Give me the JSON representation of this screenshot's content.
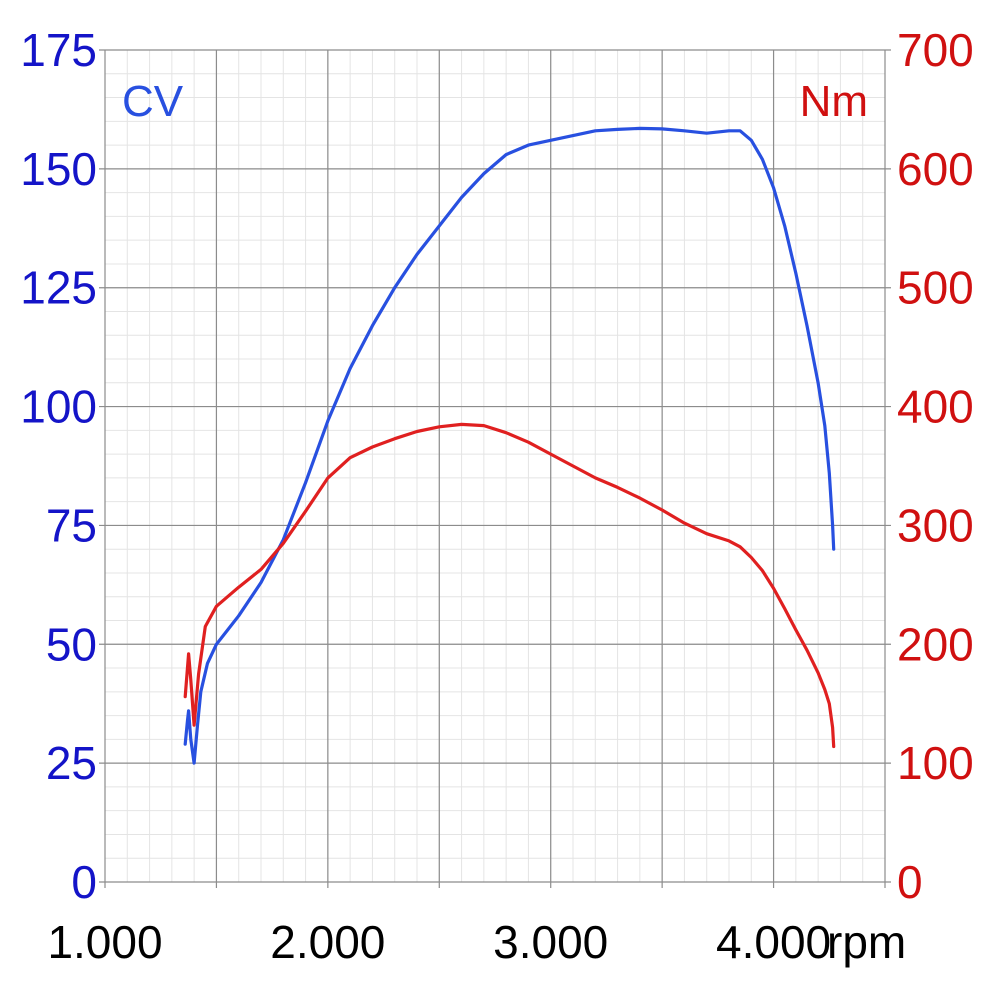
{
  "chart_data": {
    "type": "line",
    "x_unit": "rpm",
    "x_ticks": [
      1000,
      2000,
      3000,
      4000
    ],
    "x_tick_labels": [
      "1.000",
      "2.000",
      "3.000",
      "4.000"
    ],
    "xlim": [
      1000,
      4500
    ],
    "grid": true,
    "axes": {
      "left": {
        "label": "CV",
        "ticks": [
          0,
          25,
          50,
          75,
          100,
          125,
          150,
          175
        ],
        "tick_labels": [
          "0",
          "25",
          "50",
          "75",
          "100",
          "125",
          "150",
          "175"
        ],
        "ylim": [
          0,
          175
        ],
        "color": "#1414c8"
      },
      "right": {
        "label": "Nm",
        "ticks": [
          0,
          100,
          200,
          300,
          400,
          500,
          600,
          700
        ],
        "tick_labels": [
          "0",
          "100",
          "200",
          "300",
          "400",
          "500",
          "600",
          "700"
        ],
        "ylim": [
          0,
          700
        ],
        "color": "#d01010"
      }
    },
    "series": [
      {
        "axis": "left",
        "color": "#2850e0",
        "points": [
          [
            1360,
            29
          ],
          [
            1370,
            34
          ],
          [
            1375,
            36
          ],
          [
            1385,
            30
          ],
          [
            1400,
            25
          ],
          [
            1415,
            33
          ],
          [
            1430,
            40
          ],
          [
            1460,
            46
          ],
          [
            1500,
            50
          ],
          [
            1550,
            53
          ],
          [
            1600,
            56
          ],
          [
            1700,
            63
          ],
          [
            1800,
            72
          ],
          [
            1900,
            84
          ],
          [
            2000,
            97
          ],
          [
            2100,
            108
          ],
          [
            2200,
            117
          ],
          [
            2300,
            125
          ],
          [
            2400,
            132
          ],
          [
            2500,
            138
          ],
          [
            2600,
            144
          ],
          [
            2700,
            149
          ],
          [
            2800,
            153
          ],
          [
            2900,
            155
          ],
          [
            3000,
            156
          ],
          [
            3100,
            157
          ],
          [
            3200,
            158
          ],
          [
            3300,
            158.3
          ],
          [
            3400,
            158.5
          ],
          [
            3500,
            158.4
          ],
          [
            3600,
            158
          ],
          [
            3700,
            157.5
          ],
          [
            3800,
            158
          ],
          [
            3850,
            158
          ],
          [
            3900,
            156
          ],
          [
            3950,
            152
          ],
          [
            4000,
            146
          ],
          [
            4050,
            138
          ],
          [
            4100,
            128
          ],
          [
            4150,
            117
          ],
          [
            4200,
            105
          ],
          [
            4230,
            96
          ],
          [
            4250,
            86
          ],
          [
            4265,
            75
          ],
          [
            4270,
            70
          ]
        ]
      },
      {
        "axis": "right",
        "color": "#e02020",
        "points": [
          [
            1360,
            156
          ],
          [
            1375,
            192
          ],
          [
            1385,
            170
          ],
          [
            1400,
            132
          ],
          [
            1420,
            175
          ],
          [
            1450,
            215
          ],
          [
            1500,
            232
          ],
          [
            1550,
            240
          ],
          [
            1600,
            248
          ],
          [
            1700,
            263
          ],
          [
            1800,
            285
          ],
          [
            1900,
            312
          ],
          [
            2000,
            340
          ],
          [
            2100,
            357
          ],
          [
            2200,
            366
          ],
          [
            2300,
            373
          ],
          [
            2400,
            379
          ],
          [
            2500,
            383
          ],
          [
            2600,
            385
          ],
          [
            2700,
            384
          ],
          [
            2800,
            378
          ],
          [
            2900,
            370
          ],
          [
            3000,
            360
          ],
          [
            3100,
            350
          ],
          [
            3200,
            340
          ],
          [
            3300,
            332
          ],
          [
            3400,
            323
          ],
          [
            3500,
            313
          ],
          [
            3600,
            302
          ],
          [
            3700,
            293
          ],
          [
            3800,
            287
          ],
          [
            3850,
            282
          ],
          [
            3900,
            273
          ],
          [
            3950,
            262
          ],
          [
            4000,
            247
          ],
          [
            4050,
            230
          ],
          [
            4100,
            212
          ],
          [
            4150,
            195
          ],
          [
            4200,
            176
          ],
          [
            4230,
            162
          ],
          [
            4250,
            150
          ],
          [
            4265,
            130
          ],
          [
            4270,
            114
          ]
        ]
      }
    ]
  }
}
